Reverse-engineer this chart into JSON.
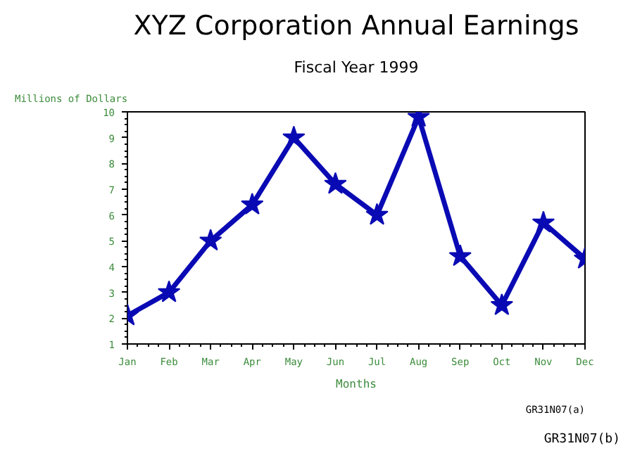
{
  "chart_data": {
    "type": "line",
    "title": "XYZ Corporation Annual Earnings",
    "subtitle": "Fiscal Year 1999",
    "xlabel": "Months",
    "ylabel": "Millions of Dollars",
    "categories": [
      "Jan",
      "Feb",
      "Mar",
      "Apr",
      "May",
      "Jun",
      "Jul",
      "Aug",
      "Sep",
      "Oct",
      "Nov",
      "Dec"
    ],
    "series": [
      {
        "color": "#0a0ab4",
        "values": [
          2.1,
          3.0,
          5.0,
          6.4,
          9.0,
          7.2,
          6.0,
          9.8,
          4.4,
          2.5,
          5.7,
          4.3
        ]
      }
    ],
    "ylim": [
      1,
      10
    ],
    "yticks": [
      1,
      2,
      3,
      4,
      5,
      6,
      7,
      8,
      9,
      10
    ],
    "marker": "star",
    "line_style": "solid",
    "grid": false,
    "annotations": [
      "GR31N07(a)",
      "GR31N07(b)"
    ]
  }
}
